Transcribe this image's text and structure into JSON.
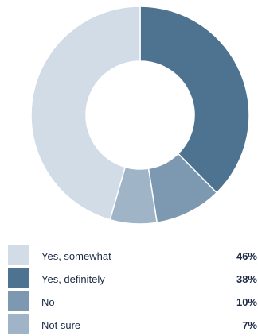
{
  "chart_data": {
    "type": "pie",
    "donut": true,
    "slices": [
      {
        "label": "Yes, definitely",
        "value": 38,
        "display": "38%",
        "color": "#4d7391"
      },
      {
        "label": "No",
        "value": 10,
        "display": "10%",
        "color": "#7d99b1"
      },
      {
        "label": "Not sure",
        "value": 7,
        "display": "7%",
        "color": "#9fb4c7"
      },
      {
        "label": "Yes, somewhat",
        "value": 46,
        "display": "46%",
        "color": "#d1dce6"
      }
    ],
    "legend": [
      {
        "label": "Yes, somewhat",
        "display": "46%",
        "color": "#d1dce6"
      },
      {
        "label": "Yes, definitely",
        "display": "38%",
        "color": "#4d7391"
      },
      {
        "label": "No",
        "display": "10%",
        "color": "#7d99b1"
      },
      {
        "label": "Not sure",
        "display": "7%",
        "color": "#9fb4c7"
      }
    ],
    "legend_position": "bottom"
  }
}
